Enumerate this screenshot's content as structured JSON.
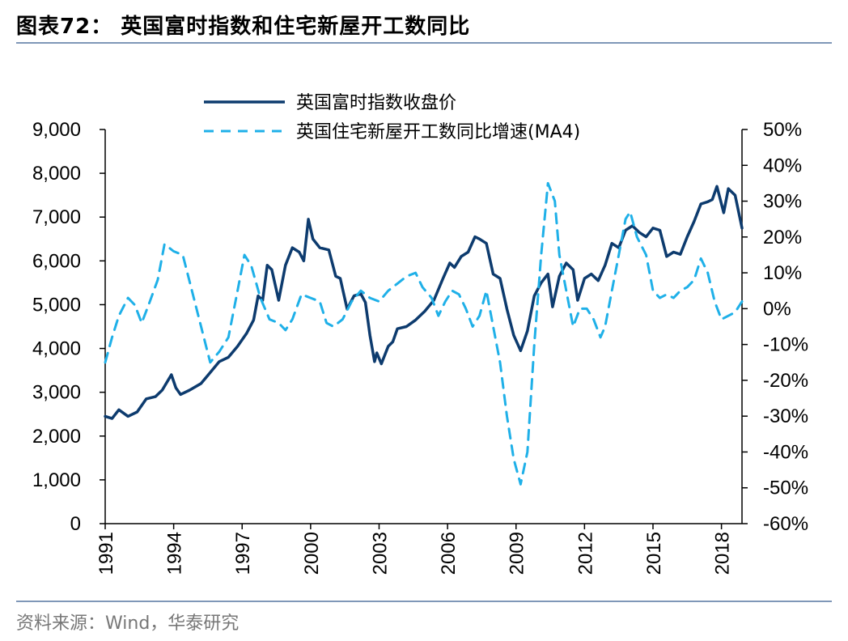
{
  "title": "图表72：  英国富时指数和住宅新屋开工数同比",
  "source": "资料来源：Wind，华泰研究",
  "chart_data": {
    "type": "line",
    "title": "英国富时指数和住宅新屋开工数同比",
    "x_ticks": [
      "1991",
      "1994",
      "1997",
      "2000",
      "2003",
      "2006",
      "2009",
      "2012",
      "2015",
      "2018"
    ],
    "y_left": {
      "min": 0,
      "max": 9000,
      "ticks": [
        "0",
        "1,000",
        "2,000",
        "3,000",
        "4,000",
        "5,000",
        "6,000",
        "7,000",
        "8,000",
        "9,000"
      ]
    },
    "y_right": {
      "min": -60,
      "max": 50,
      "ticks": [
        "-60%",
        "-50%",
        "-40%",
        "-30%",
        "-20%",
        "-10%",
        "0%",
        "10%",
        "20%",
        "30%",
        "40%",
        "50%"
      ]
    },
    "legend": "top",
    "series": [
      {
        "name": "英国富时指数收盘价",
        "axis": "left",
        "color": "#0d3b6e",
        "style": "solid",
        "points": [
          [
            1991.0,
            2450
          ],
          [
            1991.3,
            2400
          ],
          [
            1991.6,
            2600
          ],
          [
            1992.0,
            2450
          ],
          [
            1992.4,
            2550
          ],
          [
            1992.8,
            2850
          ],
          [
            1993.2,
            2900
          ],
          [
            1993.5,
            3050
          ],
          [
            1993.9,
            3400
          ],
          [
            1994.1,
            3100
          ],
          [
            1994.3,
            2950
          ],
          [
            1994.7,
            3050
          ],
          [
            1995.2,
            3200
          ],
          [
            1995.6,
            3450
          ],
          [
            1996.0,
            3700
          ],
          [
            1996.4,
            3800
          ],
          [
            1996.8,
            4050
          ],
          [
            1997.2,
            4350
          ],
          [
            1997.5,
            4650
          ],
          [
            1997.7,
            5200
          ],
          [
            1997.9,
            5100
          ],
          [
            1998.1,
            5900
          ],
          [
            1998.3,
            5800
          ],
          [
            1998.6,
            5100
          ],
          [
            1998.9,
            5900
          ],
          [
            1999.2,
            6300
          ],
          [
            1999.5,
            6200
          ],
          [
            1999.7,
            6000
          ],
          [
            1999.9,
            6950
          ],
          [
            2000.1,
            6500
          ],
          [
            2000.4,
            6300
          ],
          [
            2000.8,
            6250
          ],
          [
            2001.1,
            5650
          ],
          [
            2001.3,
            5600
          ],
          [
            2001.6,
            4900
          ],
          [
            2001.9,
            5200
          ],
          [
            2002.2,
            5250
          ],
          [
            2002.4,
            5050
          ],
          [
            2002.6,
            4300
          ],
          [
            2002.8,
            3700
          ],
          [
            2002.9,
            3900
          ],
          [
            2003.1,
            3650
          ],
          [
            2003.4,
            4050
          ],
          [
            2003.6,
            4150
          ],
          [
            2003.8,
            4450
          ],
          [
            2004.2,
            4500
          ],
          [
            2004.6,
            4650
          ],
          [
            2005.0,
            4850
          ],
          [
            2005.4,
            5100
          ],
          [
            2005.8,
            5600
          ],
          [
            2006.1,
            5950
          ],
          [
            2006.3,
            5850
          ],
          [
            2006.6,
            6100
          ],
          [
            2006.9,
            6200
          ],
          [
            2007.2,
            6550
          ],
          [
            2007.4,
            6500
          ],
          [
            2007.7,
            6400
          ],
          [
            2008.0,
            5700
          ],
          [
            2008.3,
            5600
          ],
          [
            2008.6,
            4900
          ],
          [
            2008.9,
            4300
          ],
          [
            2009.2,
            3950
          ],
          [
            2009.5,
            4400
          ],
          [
            2009.8,
            5200
          ],
          [
            2010.1,
            5500
          ],
          [
            2010.4,
            5700
          ],
          [
            2010.6,
            4950
          ],
          [
            2010.9,
            5650
          ],
          [
            2011.2,
            5950
          ],
          [
            2011.5,
            5800
          ],
          [
            2011.7,
            5100
          ],
          [
            2012.0,
            5600
          ],
          [
            2012.3,
            5700
          ],
          [
            2012.6,
            5550
          ],
          [
            2012.9,
            5900
          ],
          [
            2013.2,
            6400
          ],
          [
            2013.5,
            6300
          ],
          [
            2013.8,
            6700
          ],
          [
            2014.1,
            6800
          ],
          [
            2014.4,
            6650
          ],
          [
            2014.7,
            6550
          ],
          [
            2015.0,
            6750
          ],
          [
            2015.3,
            6700
          ],
          [
            2015.6,
            6100
          ],
          [
            2015.9,
            6200
          ],
          [
            2016.2,
            6150
          ],
          [
            2016.5,
            6550
          ],
          [
            2016.8,
            6900
          ],
          [
            2017.1,
            7300
          ],
          [
            2017.4,
            7350
          ],
          [
            2017.6,
            7400
          ],
          [
            2017.8,
            7700
          ],
          [
            2018.1,
            7100
          ],
          [
            2018.3,
            7650
          ],
          [
            2018.6,
            7500
          ],
          [
            2018.9,
            6750
          ]
        ]
      },
      {
        "name": "英国住宅新屋开工数同比增速(MA4)",
        "axis": "right",
        "color": "#1fb0e8",
        "style": "dashed",
        "points": [
          [
            1991.0,
            -15
          ],
          [
            1991.3,
            -8
          ],
          [
            1991.6,
            -2
          ],
          [
            1992.0,
            3
          ],
          [
            1992.3,
            1
          ],
          [
            1992.6,
            -4
          ],
          [
            1992.9,
            1
          ],
          [
            1993.3,
            8
          ],
          [
            1993.6,
            18
          ],
          [
            1994.0,
            16
          ],
          [
            1994.4,
            15
          ],
          [
            1994.8,
            5
          ],
          [
            1995.2,
            -5
          ],
          [
            1995.6,
            -15
          ],
          [
            1996.0,
            -12
          ],
          [
            1996.4,
            -8
          ],
          [
            1996.8,
            5
          ],
          [
            1997.1,
            15
          ],
          [
            1997.4,
            12
          ],
          [
            1997.8,
            3
          ],
          [
            1998.2,
            -3
          ],
          [
            1998.6,
            -4
          ],
          [
            1998.9,
            -6
          ],
          [
            1999.2,
            -3
          ],
          [
            1999.6,
            4
          ],
          [
            2000.0,
            3
          ],
          [
            2000.4,
            2
          ],
          [
            2000.7,
            -4
          ],
          [
            2001.0,
            -5
          ],
          [
            2001.4,
            -3
          ],
          [
            2001.8,
            2
          ],
          [
            2002.2,
            5
          ],
          [
            2002.6,
            3
          ],
          [
            2003.0,
            2
          ],
          [
            2003.4,
            5
          ],
          [
            2003.8,
            7
          ],
          [
            2004.2,
            9
          ],
          [
            2004.6,
            10
          ],
          [
            2004.9,
            6
          ],
          [
            2005.3,
            3
          ],
          [
            2005.6,
            -2
          ],
          [
            2005.9,
            2
          ],
          [
            2006.2,
            5
          ],
          [
            2006.5,
            4
          ],
          [
            2006.8,
            0
          ],
          [
            2007.1,
            -5
          ],
          [
            2007.4,
            -2
          ],
          [
            2007.7,
            5
          ],
          [
            2008.0,
            -5
          ],
          [
            2008.3,
            -15
          ],
          [
            2008.6,
            -30
          ],
          [
            2008.9,
            -42
          ],
          [
            2009.2,
            -49
          ],
          [
            2009.5,
            -40
          ],
          [
            2009.8,
            -10
          ],
          [
            2010.1,
            15
          ],
          [
            2010.4,
            35
          ],
          [
            2010.7,
            30
          ],
          [
            2010.9,
            15
          ],
          [
            2011.2,
            5
          ],
          [
            2011.5,
            -5
          ],
          [
            2011.8,
            0
          ],
          [
            2012.1,
            0
          ],
          [
            2012.4,
            -3
          ],
          [
            2012.7,
            -8
          ],
          [
            2012.9,
            -5
          ],
          [
            2013.2,
            5
          ],
          [
            2013.5,
            15
          ],
          [
            2013.8,
            25
          ],
          [
            2014.0,
            27
          ],
          [
            2014.3,
            20
          ],
          [
            2014.7,
            15
          ],
          [
            2015.0,
            5
          ],
          [
            2015.3,
            3
          ],
          [
            2015.6,
            4
          ],
          [
            2015.9,
            3
          ],
          [
            2016.2,
            5
          ],
          [
            2016.5,
            6
          ],
          [
            2016.8,
            8
          ],
          [
            2017.1,
            14
          ],
          [
            2017.4,
            10
          ],
          [
            2017.7,
            2
          ],
          [
            2018.0,
            -3
          ],
          [
            2018.3,
            -2
          ],
          [
            2018.6,
            -1
          ],
          [
            2018.9,
            2
          ]
        ]
      }
    ]
  }
}
